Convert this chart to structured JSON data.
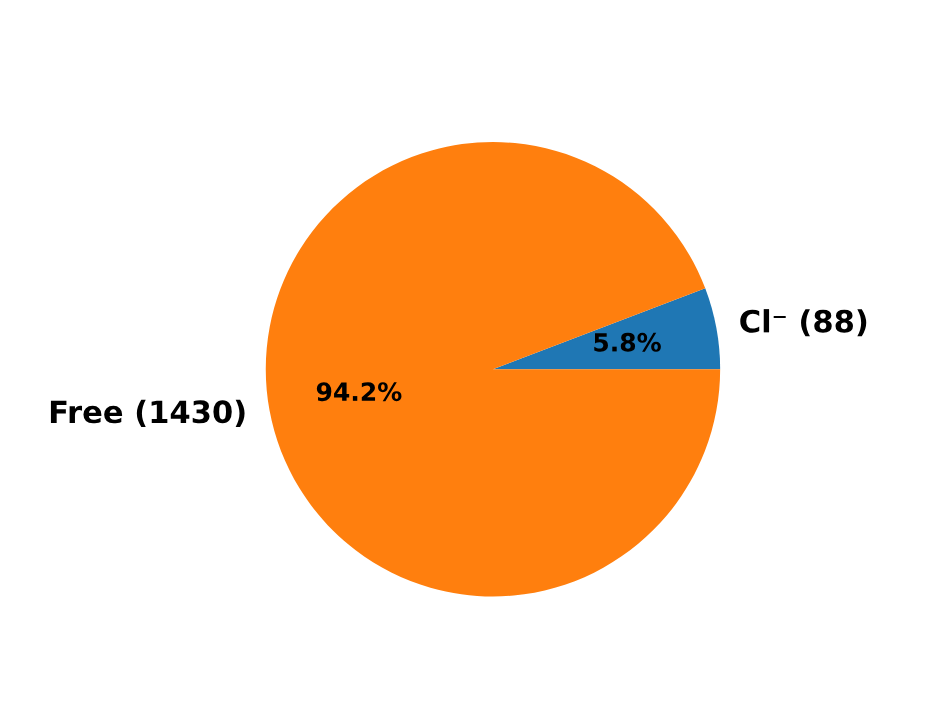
{
  "chart_data": {
    "type": "pie",
    "categories": [
      "Cl⁻ (88)",
      "Free (1430)"
    ],
    "values": [
      5.8,
      94.2
    ],
    "colors": [
      "#1f77b4",
      "#ff7f0e"
    ],
    "value_labels": [
      "5.8%",
      "94.2%"
    ]
  }
}
